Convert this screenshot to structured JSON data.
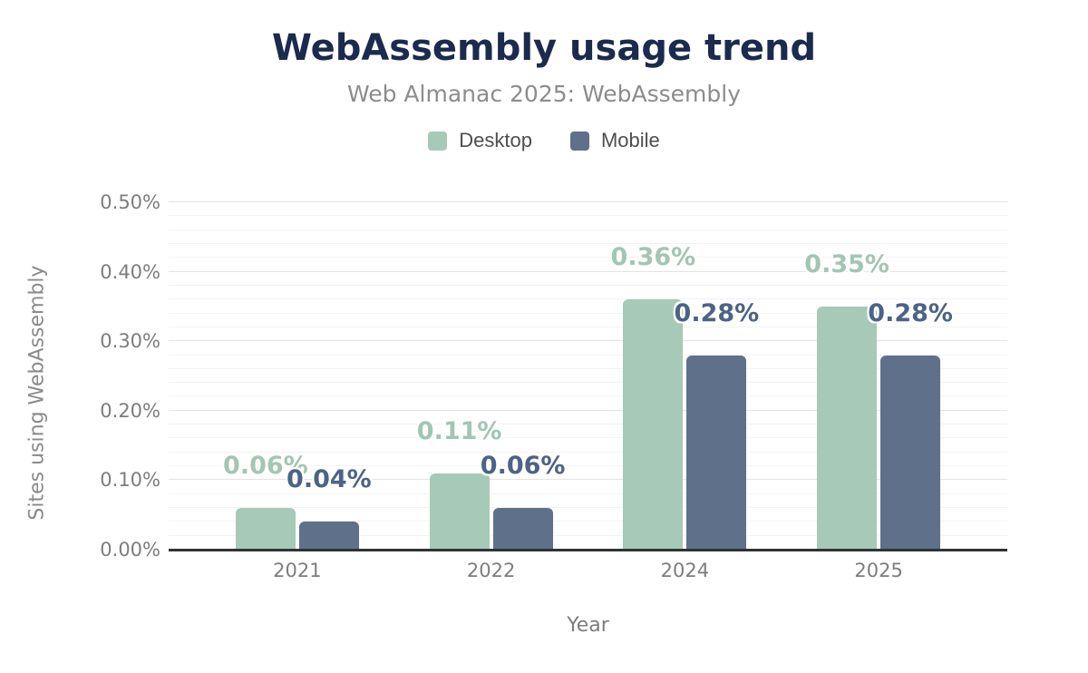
{
  "chart_data": {
    "type": "bar",
    "title": "WebAssembly usage trend",
    "subtitle": "Web Almanac 2025: WebAssembly",
    "categories": [
      "2021",
      "2022",
      "2024",
      "2025"
    ],
    "series": [
      {
        "name": "Desktop",
        "color": "#a7c9b8",
        "label_color": "#a2c6b3",
        "values": [
          0.06,
          0.11,
          0.36,
          0.35
        ],
        "labels": [
          "0.06%",
          "0.11%",
          "0.36%",
          "0.35%"
        ]
      },
      {
        "name": "Mobile",
        "color": "#5f708a",
        "label_color": "#4c6386",
        "values": [
          0.04,
          0.06,
          0.28,
          0.28
        ],
        "labels": [
          "0.04%",
          "0.06%",
          "0.28%",
          "0.28%"
        ]
      }
    ],
    "xlabel": "Year",
    "ylabel": "Sites using WebAssembly",
    "ylim": [
      0,
      0.5
    ],
    "yticks": [
      {
        "value": 0.0,
        "label": "0.00%"
      },
      {
        "value": 0.1,
        "label": "0.10%"
      },
      {
        "value": 0.2,
        "label": "0.20%"
      },
      {
        "value": 0.3,
        "label": "0.30%"
      },
      {
        "value": 0.4,
        "label": "0.40%"
      },
      {
        "value": 0.5,
        "label": "0.50%"
      }
    ],
    "minor_tick_step": 0.02,
    "major_tick_step": 0.1,
    "grid": "on",
    "legend_position": "top",
    "colors": {
      "title": "#1b2b4d",
      "subtitle": "#8c8c8c",
      "axis_text": "#7d7d7d",
      "axis_line": "#303237",
      "grid_major": "#e3e3e3",
      "grid_minor": "#f3f3f3",
      "background": "#ffffff"
    }
  }
}
